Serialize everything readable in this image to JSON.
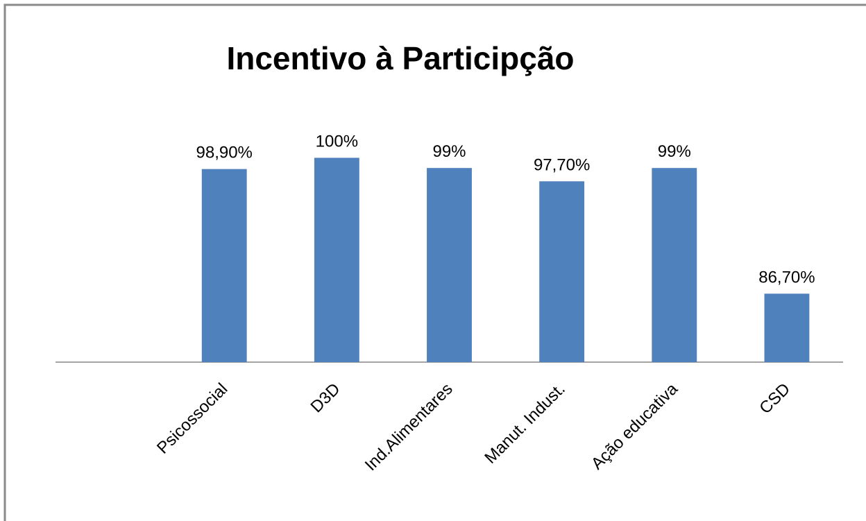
{
  "chart_data": {
    "type": "bar",
    "title": "Incentivo à Participção",
    "categories": [
      null,
      "Psicossocial",
      "D3D",
      "Ind.Alimentares",
      "Manut. Indust.",
      "Ação educativa",
      "CSD"
    ],
    "values": [
      null,
      98.9,
      100,
      99,
      97.7,
      99,
      86.7
    ],
    "value_labels": [
      null,
      "98,90%",
      "100%",
      "99%",
      "97,70%",
      "99%",
      "86,70%"
    ],
    "color": "#4f81bd",
    "ylim": [
      80,
      102
    ]
  }
}
